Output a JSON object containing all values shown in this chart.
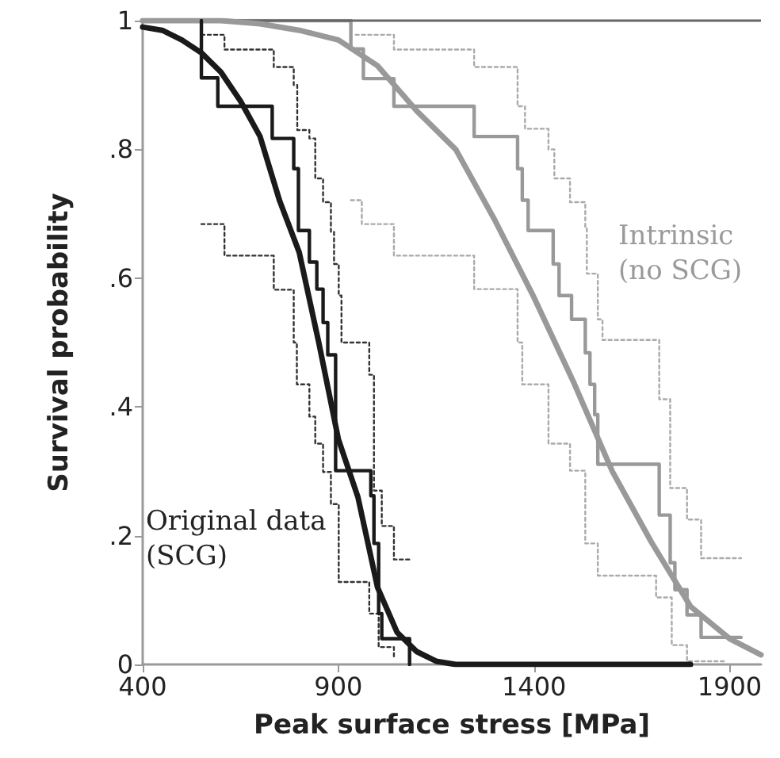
{
  "chart_data": {
    "type": "line",
    "xlabel": "Peak surface stress [MPa]",
    "ylabel": "Survival probability",
    "xlim": [
      400,
      1980
    ],
    "xticks": [
      400,
      900,
      1400,
      1900
    ],
    "ylim": [
      0,
      1
    ],
    "yticks": [
      0,
      {
        "value": 0.2,
        "label": ".2"
      },
      {
        "value": 0.4,
        "label": ".4"
      },
      {
        "value": 0.6,
        "label": ".6"
      },
      {
        "value": 0.8,
        "label": ".8"
      },
      1
    ],
    "grid": false,
    "marker": "none",
    "ref_lines": [
      {
        "axis": "y",
        "value": 1,
        "color": "#666666"
      }
    ],
    "annotations": [
      "Original data\n(SCG)",
      "Intrinsic\n(no SCG)"
    ],
    "series": [
      {
        "type": "step",
        "color": "#aaaaaa",
        "line_style": "dotted",
        "x": [
          944,
          1042,
          1247,
          1358,
          1377,
          1437,
          1452,
          1492,
          1531,
          1535,
          1563,
          1575,
          1720,
          1748,
          1791,
          1827,
          1929
        ],
        "values": [
          0.978,
          0.955,
          0.928,
          0.867,
          0.832,
          0.8,
          0.755,
          0.718,
          0.677,
          0.607,
          0.536,
          0.504,
          0.412,
          0.274,
          0.225,
          0.165,
          0.165
        ]
      },
      {
        "type": "step",
        "color": "#aaaaaa",
        "line_style": "dotted",
        "x": [
          932,
          960,
          1042,
          1247,
          1358,
          1370,
          1437,
          1492,
          1531,
          1563,
          1712,
          1752,
          1791,
          1886
        ],
        "values": [
          0.721,
          0.684,
          0.635,
          0.583,
          0.5,
          0.435,
          0.343,
          0.301,
          0.188,
          0.138,
          0.104,
          0.03,
          0.005,
          0.005
        ]
      },
      {
        "type": "step",
        "color": "#999999",
        "line_style": "solid",
        "x": [
          400,
          932,
          964,
          1042,
          1247,
          1358,
          1370,
          1385,
          1449,
          1464,
          1496,
          1531,
          1543,
          1555,
          1563,
          1720,
          1748,
          1760,
          1791,
          1827,
          1929
        ],
        "values": [
          1,
          0.956,
          0.91,
          0.867,
          0.82,
          0.77,
          0.721,
          0.674,
          0.622,
          0.573,
          0.536,
          0.484,
          0.435,
          0.388,
          0.311,
          0.232,
          0.158,
          0.116,
          0.077,
          0.042,
          0.042
        ]
      },
      {
        "type": "line",
        "color": "#999999",
        "line_style": "solid",
        "x": [
          400,
          600,
          700,
          800,
          900,
          1000,
          1100,
          1200,
          1300,
          1400,
          1500,
          1600,
          1700,
          1800,
          1900,
          1980
        ],
        "values": [
          1,
          1,
          0.995,
          0.985,
          0.97,
          0.93,
          0.86,
          0.8,
          0.69,
          0.57,
          0.44,
          0.3,
          0.19,
          0.09,
          0.04,
          0.015
        ]
      },
      {
        "type": "step",
        "color": "#333333",
        "line_style": "dotted",
        "x": [
          550,
          609,
          735,
          786,
          795,
          826,
          841,
          861,
          881,
          889,
          901,
          908,
          979,
          991,
          1011,
          1042,
          1082
        ],
        "values": [
          0.978,
          0.955,
          0.928,
          0.9,
          0.83,
          0.817,
          0.755,
          0.718,
          0.672,
          0.622,
          0.573,
          0.5,
          0.45,
          0.27,
          0.215,
          0.163,
          0.163
        ]
      },
      {
        "type": "step",
        "color": "#333333",
        "line_style": "dotted",
        "x": [
          550,
          609,
          735,
          786,
          794,
          826,
          841,
          861,
          881,
          901,
          979,
          1003,
          1042
        ],
        "values": [
          0.684,
          0.635,
          0.582,
          0.5,
          0.435,
          0.385,
          0.343,
          0.299,
          0.249,
          0.128,
          0.079,
          0.027,
          0.01
        ]
      },
      {
        "type": "step",
        "color": "#1a1a1a",
        "line_style": "solid",
        "x": [
          550,
          550,
          592,
          731,
          786,
          798,
          826,
          845,
          861,
          873,
          893,
          983,
          991,
          1003,
          1011,
          1082
        ],
        "values": [
          1,
          0.911,
          0.867,
          0.817,
          0.77,
          0.674,
          0.625,
          0.583,
          0.531,
          0.481,
          0.301,
          0.262,
          0.188,
          0.079,
          0.04,
          0
        ]
      },
      {
        "type": "line",
        "color": "#1a1a1a",
        "line_style": "solid",
        "x": [
          400,
          450,
          500,
          550,
          600,
          650,
          700,
          750,
          800,
          850,
          900,
          950,
          1000,
          1050,
          1100,
          1150,
          1200,
          1800
        ],
        "values": [
          0.99,
          0.985,
          0.97,
          0.95,
          0.92,
          0.875,
          0.82,
          0.72,
          0.64,
          0.5,
          0.35,
          0.26,
          0.12,
          0.05,
          0.02,
          0.005,
          0,
          0
        ]
      }
    ]
  }
}
